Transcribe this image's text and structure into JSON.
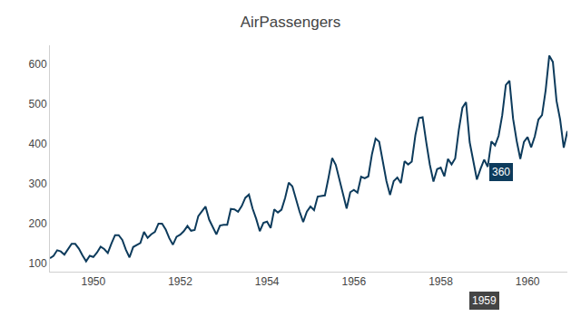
{
  "chart_data": {
    "type": "line",
    "title": "AirPassengers",
    "color": "#0d3b5c",
    "grid": false,
    "x": [
      1949,
      1949.083,
      1949.167,
      1949.25,
      1949.333,
      1949.417,
      1949.5,
      1949.583,
      1949.667,
      1949.75,
      1949.833,
      1949.917,
      1950,
      1950.083,
      1950.167,
      1950.25,
      1950.333,
      1950.417,
      1950.5,
      1950.583,
      1950.667,
      1950.75,
      1950.833,
      1950.917,
      1951,
      1951.083,
      1951.167,
      1951.25,
      1951.333,
      1951.417,
      1951.5,
      1951.583,
      1951.667,
      1951.75,
      1951.833,
      1951.917,
      1952,
      1952.083,
      1952.167,
      1952.25,
      1952.333,
      1952.417,
      1952.5,
      1952.583,
      1952.667,
      1952.75,
      1952.833,
      1952.917,
      1953,
      1953.083,
      1953.167,
      1953.25,
      1953.333,
      1953.417,
      1953.5,
      1953.583,
      1953.667,
      1953.75,
      1953.833,
      1953.917,
      1954,
      1954.083,
      1954.167,
      1954.25,
      1954.333,
      1954.417,
      1954.5,
      1954.583,
      1954.667,
      1954.75,
      1954.833,
      1954.917,
      1955,
      1955.083,
      1955.167,
      1955.25,
      1955.333,
      1955.417,
      1955.5,
      1955.583,
      1955.667,
      1955.75,
      1955.833,
      1955.917,
      1956,
      1956.083,
      1956.167,
      1956.25,
      1956.333,
      1956.417,
      1956.5,
      1956.583,
      1956.667,
      1956.75,
      1956.833,
      1956.917,
      1957,
      1957.083,
      1957.167,
      1957.25,
      1957.333,
      1957.417,
      1957.5,
      1957.583,
      1957.667,
      1957.75,
      1957.833,
      1957.917,
      1958,
      1958.083,
      1958.167,
      1958.25,
      1958.333,
      1958.417,
      1958.5,
      1958.583,
      1958.667,
      1958.75,
      1958.833,
      1958.917,
      1959,
      1959.083,
      1959.167,
      1959.25,
      1959.333,
      1959.417,
      1959.5,
      1959.583,
      1959.667,
      1959.75,
      1959.833,
      1959.917,
      1960,
      1960.083,
      1960.167,
      1960.25,
      1960.333,
      1960.417,
      1960.5,
      1960.583,
      1960.667,
      1960.75,
      1960.833,
      1960.917
    ],
    "values": [
      112,
      118,
      132,
      129,
      121,
      135,
      148,
      148,
      136,
      119,
      104,
      118,
      115,
      126,
      141,
      135,
      125,
      149,
      170,
      170,
      158,
      133,
      114,
      140,
      145,
      150,
      178,
      163,
      172,
      178,
      199,
      199,
      184,
      162,
      146,
      166,
      171,
      180,
      193,
      181,
      183,
      218,
      230,
      242,
      209,
      191,
      172,
      194,
      196,
      196,
      236,
      235,
      229,
      243,
      264,
      272,
      237,
      211,
      180,
      201,
      204,
      188,
      235,
      227,
      234,
      264,
      302,
      293,
      259,
      229,
      203,
      229,
      242,
      233,
      267,
      269,
      270,
      315,
      364,
      347,
      312,
      274,
      237,
      278,
      284,
      277,
      317,
      313,
      318,
      374,
      413,
      405,
      355,
      306,
      271,
      306,
      315,
      301,
      356,
      348,
      355,
      422,
      465,
      467,
      404,
      347,
      305,
      336,
      340,
      318,
      362,
      348,
      363,
      435,
      491,
      505,
      404,
      359,
      310,
      337,
      360,
      342,
      406,
      396,
      420,
      472,
      548,
      559,
      463,
      407,
      362,
      405,
      417,
      391,
      419,
      461,
      472,
      535,
      622,
      606,
      508,
      461,
      390,
      432
    ],
    "xlim": [
      1949,
      1960.917
    ],
    "xticks": [
      1950,
      1952,
      1954,
      1956,
      1958,
      1960
    ],
    "ylim": [
      78,
      648
    ],
    "yticks": [
      100,
      200,
      300,
      400,
      500,
      600
    ],
    "annotations": [
      {
        "x": 1959,
        "y": 360,
        "text": "360"
      },
      {
        "x": 1959,
        "text": "1959"
      }
    ]
  }
}
